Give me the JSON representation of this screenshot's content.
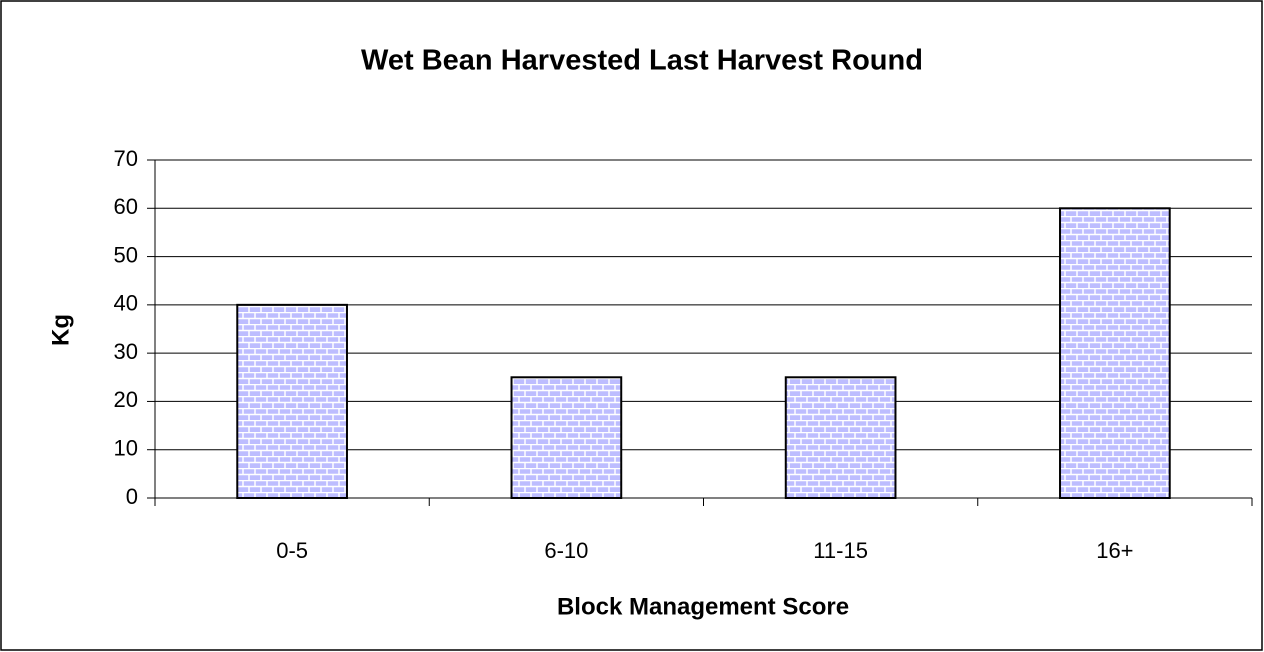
{
  "chart_data": {
    "type": "bar",
    "title": "Wet Bean Harvested Last Harvest Round",
    "x_label": "Block Management Score",
    "y_label": "Kg",
    "categories": [
      "0-5",
      "6-10",
      "11-15",
      "16+"
    ],
    "values": [
      40,
      25,
      25,
      60
    ],
    "color": "#9999ff",
    "ylim": [
      0,
      70
    ],
    "yticks": [
      0,
      10,
      20,
      30,
      40,
      50,
      60,
      70
    ],
    "grid": true
  }
}
